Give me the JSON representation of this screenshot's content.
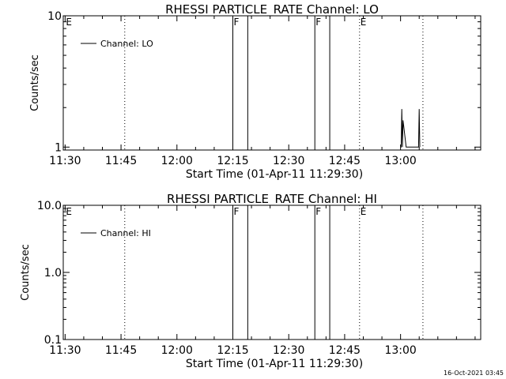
{
  "chart_data": [
    {
      "type": "line",
      "title": "RHESSI PARTICLE_RATE Channel: LO",
      "xlabel": "Start Time (01-Apr-11 11:29:30)",
      "ylabel": "Counts/sec",
      "xlim": [
        "11:29:30",
        "13:21:30"
      ],
      "x_ticks": [
        "11:30",
        "11:45",
        "12:00",
        "12:15",
        "12:30",
        "12:45",
        "13:00"
      ],
      "y_scale": "log",
      "ylim": [
        0.95,
        10
      ],
      "y_ticks": [
        "1",
        "10"
      ],
      "legend": {
        "position": "top-left",
        "entries": [
          "Channel: LO"
        ]
      },
      "flags": [
        {
          "label": "E",
          "time": "11:30",
          "style": "none"
        },
        {
          "label": "F",
          "time": "12:15",
          "style": "solid",
          "end": "12:19"
        },
        {
          "label": "F",
          "time": "12:37",
          "style": "solid",
          "end": "12:41"
        },
        {
          "label": "E",
          "time": "12:49",
          "style": "dotted"
        }
      ],
      "extra_dotted_lines": [
        "11:46",
        "13:06"
      ],
      "series": [
        {
          "name": "Channel: LO",
          "x": [
            "13:00:00",
            "13:00:10",
            "13:00:20",
            "13:00:30",
            "13:00:40",
            "13:01:30",
            "13:04:40",
            "13:04:50",
            "13:05:00",
            "13:05:10"
          ],
          "y": [
            1,
            1,
            1.95,
            1,
            1.6,
            1,
            1,
            1,
            1.95,
            1
          ]
        }
      ]
    },
    {
      "type": "line",
      "title": "RHESSI PARTICLE_RATE Channel: HI",
      "xlabel": "Start Time (01-Apr-11 11:29:30)",
      "ylabel": "Counts/sec",
      "xlim": [
        "11:29:30",
        "13:21:30"
      ],
      "x_ticks": [
        "11:30",
        "11:45",
        "12:00",
        "12:15",
        "12:30",
        "12:45",
        "13:00"
      ],
      "y_scale": "log",
      "ylim": [
        0.1,
        10
      ],
      "y_ticks": [
        "0.1",
        "1.0",
        "10.0"
      ],
      "legend": {
        "position": "top-left",
        "entries": [
          "Channel: HI"
        ]
      },
      "flags": [
        {
          "label": "E",
          "time": "11:30",
          "style": "none"
        },
        {
          "label": "F",
          "time": "12:15",
          "style": "solid",
          "end": "12:19"
        },
        {
          "label": "F",
          "time": "12:37",
          "style": "solid",
          "end": "12:41"
        },
        {
          "label": "E",
          "time": "12:49",
          "style": "dotted"
        }
      ],
      "extra_dotted_lines": [
        "11:46",
        "13:06"
      ],
      "series": [
        {
          "name": "Channel: HI",
          "x": [],
          "y": []
        }
      ]
    }
  ],
  "footer": {
    "timestamp": "16-Oct-2021 03:45"
  }
}
